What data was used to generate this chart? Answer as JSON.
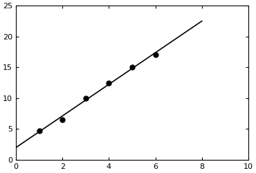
{
  "scatter_x": [
    1,
    2,
    3,
    4,
    5,
    6
  ],
  "scatter_y": [
    4.7,
    6.5,
    10.0,
    12.5,
    15.0,
    17.0
  ],
  "line_x": [
    0,
    8
  ],
  "line_y": [
    2.0,
    22.5
  ],
  "xlim": [
    0,
    10
  ],
  "ylim": [
    0,
    25
  ],
  "xticks": [
    0,
    2,
    4,
    6,
    8,
    10
  ],
  "yticks": [
    0,
    5,
    10,
    15,
    20,
    25
  ],
  "marker": "o",
  "marker_color": "#000000",
  "marker_size": 5,
  "line_color": "#000000",
  "line_width": 1.2,
  "background_color": "#ffffff",
  "spine_color": "#000000",
  "tick_labelsize": 8
}
